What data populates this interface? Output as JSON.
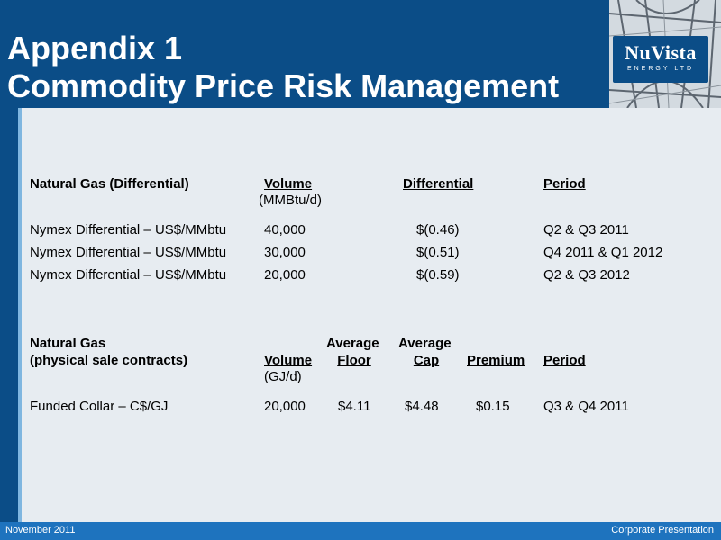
{
  "slide": {
    "title_line1": "Appendix 1",
    "title_line2": "Commodity Price Risk Management"
  },
  "logo": {
    "name": "NuVista",
    "subtitle": "ENERGY LTD"
  },
  "table1": {
    "headers": {
      "instrument": "Natural Gas (Differential)",
      "volume": "Volume",
      "volume_unit": "(MMBtu/d)",
      "differential": "Differential",
      "period": "Period"
    },
    "rows": [
      {
        "instrument": "Nymex Differential – US$/MMbtu",
        "volume": "40,000",
        "differential": "$(0.46)",
        "period": "Q2 & Q3 2011"
      },
      {
        "instrument": "Nymex Differential – US$/MMbtu",
        "volume": "30,000",
        "differential": "$(0.51)",
        "period": "Q4 2011 & Q1 2012"
      },
      {
        "instrument": "Nymex Differential – US$/MMbtu",
        "volume": "20,000",
        "differential": "$(0.59)",
        "period": "Q2 & Q3 2012"
      }
    ]
  },
  "table2": {
    "headers": {
      "instrument_line1": "Natural Gas",
      "instrument_line2": "(physical sale contracts)",
      "volume": "Volume",
      "volume_unit": "(GJ/d)",
      "floor_line1": "Average",
      "floor_line2": "Floor",
      "cap_line1": "Average",
      "cap_line2": "Cap",
      "premium": "Premium",
      "period": "Period"
    },
    "rows": [
      {
        "instrument": "Funded Collar – C$/GJ",
        "volume": "20,000",
        "floor": "$4.11",
        "cap": "$4.48",
        "premium": "$0.15",
        "period": "Q3 & Q4 2011"
      }
    ]
  },
  "footer": {
    "date": "November  2011",
    "label": "Corporate Presentation"
  },
  "colors": {
    "header_blue": "#0b4d87",
    "footer_blue": "#1e73be",
    "content_bg": "#e7ecf1"
  }
}
